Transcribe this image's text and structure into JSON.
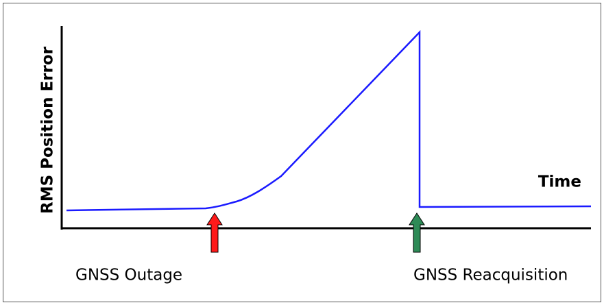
{
  "axes": {
    "y_label": "RMS Position Error",
    "x_label": "Time"
  },
  "annotations": [
    "GNSS Outage",
    "GNSS Reacquisition"
  ]
}
